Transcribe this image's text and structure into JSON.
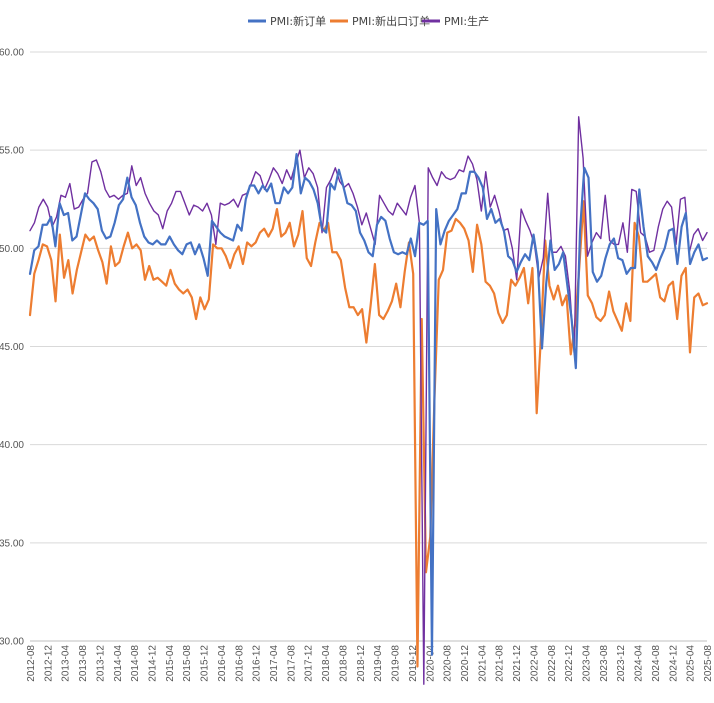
{
  "chart_data": {
    "type": "line",
    "title": "",
    "xlabel": "",
    "ylabel": "",
    "ylim": [
      30,
      60
    ],
    "y_ticks": [
      "30.00",
      "35.00",
      "40.00",
      "45.00",
      "50.00",
      "55.00",
      "60.00"
    ],
    "x_ticks": [
      "2012-08",
      "2012-12",
      "2013-04",
      "2013-08",
      "2013-12",
      "2014-04",
      "2014-08",
      "2014-12",
      "2015-04",
      "2015-08",
      "2015-12",
      "2016-04",
      "2016-08",
      "2016-12",
      "2017-04",
      "2017-08",
      "2017-12",
      "2018-04",
      "2018-08",
      "2018-12",
      "2019-04",
      "2019-08",
      "2019-12",
      "2020-04",
      "2020-08",
      "2020-12",
      "2021-04",
      "2021-08",
      "2021-12",
      "2022-04",
      "2022-08",
      "2022-12",
      "2023-04",
      "2023-08",
      "2023-12",
      "2024-04",
      "2024-08",
      "2024-12",
      "2025-04",
      "2025-08"
    ],
    "x_start": "2012-08",
    "x_end": "2025-08",
    "grid": "horizontal",
    "legend_position": "top",
    "series": [
      {
        "name": "PMI:新订单",
        "color": "#4472C4",
        "values": [
          48.7,
          49.9,
          50.1,
          51.2,
          51.2,
          51.6,
          50.1,
          52.3,
          51.7,
          51.8,
          50.4,
          50.6,
          51.7,
          52.8,
          52.5,
          52.3,
          52.0,
          50.9,
          50.5,
          50.6,
          51.3,
          52.2,
          52.5,
          53.6,
          52.6,
          52.2,
          51.3,
          50.6,
          50.3,
          50.2,
          50.4,
          50.2,
          50.2,
          50.6,
          50.2,
          49.9,
          49.7,
          50.2,
          50.3,
          49.7,
          50.2,
          49.5,
          48.6,
          51.4,
          51.1,
          50.8,
          50.6,
          50.5,
          50.4,
          51.2,
          50.9,
          52.5,
          53.2,
          53.2,
          52.8,
          53.2,
          52.9,
          53.3,
          52.3,
          52.3,
          53.1,
          52.8,
          53.1,
          54.8,
          52.8,
          53.6,
          53.4,
          53.0,
          52.3,
          51.0,
          50.8,
          53.3,
          53.0,
          54.0,
          53.2,
          52.3,
          52.2,
          51.9,
          50.8,
          50.4,
          49.8,
          49.6,
          51.2,
          51.6,
          51.4,
          50.5,
          49.8,
          49.7,
          49.8,
          49.7,
          50.5,
          49.6,
          51.3,
          51.2,
          51.4,
          29.3,
          52.0,
          50.2,
          50.9,
          51.4,
          51.7,
          52.0,
          52.8,
          52.8,
          53.9,
          53.9,
          53.6,
          53.1,
          51.5,
          52.0,
          51.3,
          51.5,
          50.9,
          49.6,
          49.4,
          48.8,
          49.3,
          49.7,
          49.4,
          50.7,
          49.3,
          44.9,
          48.2,
          50.4,
          48.9,
          49.2,
          49.8,
          48.1,
          46.4,
          43.9,
          50.9,
          54.1,
          53.6,
          48.8,
          48.3,
          48.6,
          49.5,
          50.2,
          50.5,
          49.5,
          49.4,
          48.7,
          49.0,
          49.0,
          53.0,
          51.1,
          49.6,
          49.3,
          48.9,
          49.5,
          50.0,
          50.9,
          51.0,
          49.2,
          51.1,
          51.8,
          49.2,
          49.8,
          50.2,
          49.4,
          49.5
        ]
      },
      {
        "name": "PMI:新出口订单",
        "color": "#ED7D31",
        "values": [
          46.6,
          48.7,
          49.4,
          50.2,
          50.1,
          49.4,
          47.3,
          50.7,
          48.5,
          49.4,
          47.7,
          48.9,
          49.8,
          50.7,
          50.4,
          50.6,
          49.9,
          49.3,
          48.2,
          50.1,
          49.1,
          49.3,
          50.1,
          50.8,
          50.0,
          50.2,
          49.9,
          48.4,
          49.1,
          48.4,
          48.5,
          48.3,
          48.1,
          48.9,
          48.2,
          47.9,
          47.7,
          47.9,
          47.5,
          46.4,
          47.5,
          46.9,
          47.4,
          50.2,
          50.0,
          50.0,
          49.6,
          49.0,
          49.7,
          50.1,
          49.2,
          50.3,
          50.1,
          50.3,
          50.8,
          51.0,
          50.6,
          51.0,
          52.0,
          50.6,
          50.8,
          51.3,
          50.1,
          50.7,
          51.9,
          49.5,
          49.1,
          50.3,
          51.3,
          50.9,
          51.3,
          49.8,
          49.8,
          49.4,
          48.0,
          47.0,
          47.0,
          46.6,
          46.9,
          45.2,
          47.1,
          49.2,
          46.6,
          46.4,
          46.8,
          47.3,
          48.2,
          47.0,
          48.8,
          50.3,
          48.7,
          28.7,
          46.4,
          33.5,
          35.3,
          42.4,
          48.4,
          48.9,
          50.8,
          50.9,
          51.5,
          51.3,
          51.0,
          50.4,
          48.8,
          51.2,
          50.2,
          48.3,
          48.1,
          47.7,
          46.7,
          46.2,
          46.6,
          48.4,
          48.1,
          48.5,
          49.0,
          47.2,
          49.0,
          41.6,
          45.5,
          50.4,
          48.1,
          47.4,
          48.1,
          47.1,
          47.6,
          44.6,
          46.1,
          49.0,
          52.4,
          47.6,
          47.2,
          46.5,
          46.3,
          46.6,
          47.8,
          46.8,
          46.3,
          45.8,
          47.2,
          46.3,
          51.3,
          50.6,
          48.3,
          48.3,
          48.5,
          48.7,
          47.5,
          47.3,
          48.1,
          48.3,
          46.4,
          48.6,
          49.0,
          44.7,
          47.5,
          47.7,
          47.1,
          47.2
        ]
      },
      {
        "name": "PMI:生产",
        "color": "#7030A0",
        "values": [
          50.9,
          51.3,
          52.1,
          52.5,
          52.1,
          51.1,
          51.6,
          52.7,
          52.6,
          53.3,
          52.0,
          52.1,
          52.5,
          52.8,
          54.4,
          54.5,
          53.9,
          53.0,
          52.6,
          52.7,
          52.5,
          52.7,
          52.8,
          54.2,
          53.2,
          53.6,
          52.8,
          52.3,
          51.9,
          51.7,
          51.0,
          51.9,
          52.3,
          52.9,
          52.9,
          52.3,
          51.7,
          52.2,
          52.1,
          51.9,
          52.3,
          51.7,
          50.2,
          52.3,
          52.2,
          52.3,
          52.5,
          52.1,
          52.7,
          52.8,
          53.3,
          53.9,
          53.7,
          53.0,
          53.5,
          54.1,
          53.8,
          53.3,
          54.0,
          53.5,
          54.3,
          55.0,
          53.6,
          54.1,
          53.8,
          53.1,
          50.8,
          53.1,
          53.5,
          54.1,
          53.4,
          53.1,
          53.3,
          52.8,
          52.1,
          51.2,
          51.8,
          51.0,
          50.2,
          52.7,
          52.3,
          51.9,
          51.7,
          52.3,
          52.0,
          51.7,
          52.6,
          53.2,
          51.3,
          27.8,
          54.1,
          53.6,
          53.2,
          53.9,
          53.6,
          53.5,
          53.6,
          54.0,
          53.9,
          54.7,
          54.3,
          53.5,
          51.9,
          53.9,
          52.1,
          52.7,
          51.9,
          50.9,
          51.0,
          50.0,
          48.4,
          52.0,
          51.4,
          50.9,
          50.2,
          48.5,
          49.5,
          52.8,
          49.8,
          49.8,
          50.1,
          49.6,
          47.8,
          44.6,
          56.7,
          54.6,
          49.6,
          50.3,
          50.8,
          50.5,
          52.7,
          50.4,
          50.2,
          50.2,
          51.3,
          49.8,
          53.0,
          52.9,
          50.8,
          50.6,
          49.8,
          49.9,
          51.1,
          52.0,
          52.4,
          52.1,
          50.2,
          52.5,
          52.6,
          49.8,
          50.7,
          51.0,
          50.4,
          50.8
        ]
      }
    ]
  }
}
